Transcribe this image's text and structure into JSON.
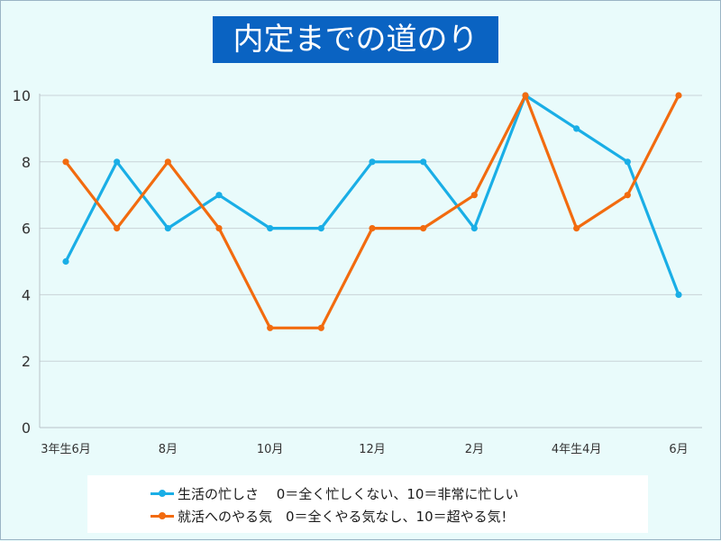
{
  "chart_data": {
    "type": "line",
    "title": "内定までの道のり",
    "ylim": [
      0,
      10
    ],
    "yticks": [
      "0",
      "2",
      "4",
      "6",
      "8",
      "10"
    ],
    "grid": true,
    "legend_position": "bottom",
    "xtick_labels": [
      {
        "index": 0,
        "label": "3年生6月"
      },
      {
        "index": 2,
        "label": "8月"
      },
      {
        "index": 4,
        "label": "10月"
      },
      {
        "index": 6,
        "label": "12月"
      },
      {
        "index": 8,
        "label": "2月"
      },
      {
        "index": 10,
        "label": "4年生4月"
      },
      {
        "index": 12,
        "label": "6月"
      }
    ],
    "series": [
      {
        "name": "生活の忙しさ　 0＝全く忙しくない、10＝非常に忙しい",
        "color": "#1aaee6",
        "values": [
          5,
          8,
          6,
          7,
          6,
          6,
          8,
          8,
          6,
          10,
          9,
          8,
          4
        ]
      },
      {
        "name": "就活へのやる気　0＝全くやる気なし、10＝超やる気！",
        "color": "#f26b0f",
        "values": [
          8,
          6,
          8,
          6,
          3,
          3,
          6,
          6,
          7,
          10,
          6,
          7,
          10
        ]
      }
    ]
  }
}
